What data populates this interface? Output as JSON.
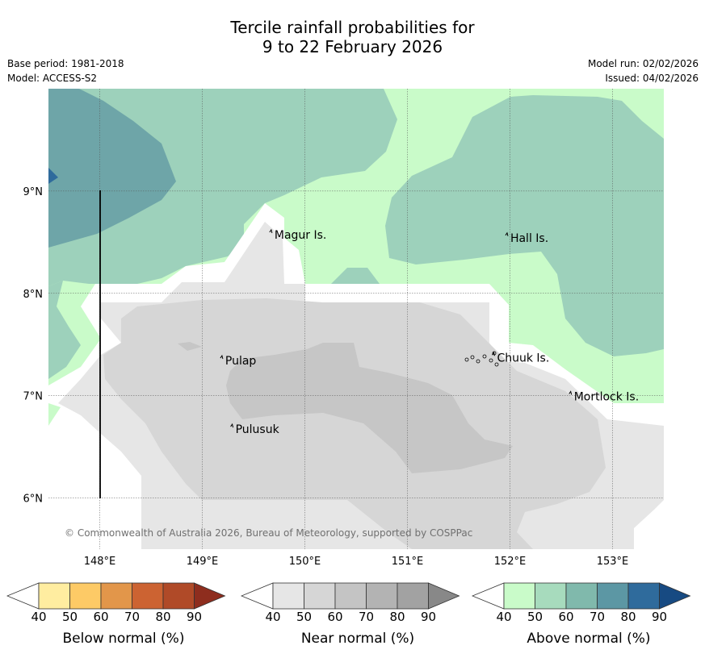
{
  "title": {
    "line1": "Tercile rainfall probabilities for",
    "line2": "9 to 22 February 2026"
  },
  "meta_left": {
    "base_period": "Base period: 1981-2018",
    "model": "Model: ACCESS-S2"
  },
  "meta_right": {
    "model_run": "Model run: 02/02/2026",
    "issued": "Issued: 04/02/2026"
  },
  "map": {
    "lon_range": [
      147.5,
      153.5
    ],
    "lat_range": [
      5.5,
      10.0
    ],
    "x_ticks": [
      "148°E",
      "149°E",
      "150°E",
      "151°E",
      "152°E",
      "153°E"
    ],
    "y_ticks": [
      "9°N",
      "8°N",
      "7°N",
      "6°N"
    ],
    "places": [
      {
        "name": "Magur Is.",
        "lon": 149.68,
        "lat": 8.55
      },
      {
        "name": "Hall Is.",
        "lon": 151.98,
        "lat": 8.52
      },
      {
        "name": "Pulap",
        "lon": 149.2,
        "lat": 7.32
      },
      {
        "name": "Chuuk Is.",
        "lon": 151.85,
        "lat": 7.35
      },
      {
        "name": "Mortlock Is.",
        "lon": 152.6,
        "lat": 6.97
      },
      {
        "name": "Pulusuk",
        "lon": 149.3,
        "lat": 6.65
      }
    ],
    "copyright": "© Commonwealth of Australia 2026, Bureau of Meteorology, supported by COSPPac",
    "colors": {
      "near_40": "#e6e6e6",
      "near_50": "#d6d6d6",
      "near_60": "#c6c6c6",
      "above_40": "#c9fbc9",
      "above_50": "#9dd1bb",
      "above_60": "#6ea5a8",
      "above_80": "#2f6b9c"
    }
  },
  "legends": [
    {
      "label": "Below normal (%)",
      "ticks": [
        "40",
        "50",
        "60",
        "70",
        "80",
        "90"
      ],
      "colors": [
        "#ffeda0",
        "#fdca66",
        "#e2964a",
        "#cc6332",
        "#b04a28",
        "#8e2d1e"
      ]
    },
    {
      "label": "Near normal (%)",
      "ticks": [
        "40",
        "50",
        "60",
        "70",
        "80",
        "90"
      ],
      "colors": [
        "#e6e6e6",
        "#d6d6d6",
        "#c4c4c4",
        "#b3b3b3",
        "#a2a2a2",
        "#888888"
      ]
    },
    {
      "label": "Above normal (%)",
      "ticks": [
        "40",
        "50",
        "60",
        "70",
        "80",
        "90"
      ],
      "colors": [
        "#c9fbc9",
        "#a7dbbd",
        "#80b9ac",
        "#5c97a4",
        "#2f6b9c",
        "#174a82"
      ]
    }
  ]
}
